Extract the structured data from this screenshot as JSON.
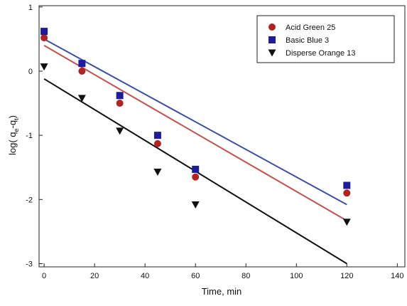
{
  "chart_data": {
    "type": "scatter",
    "x_label": "Time, min",
    "y_label": [
      "log( q",
      "e",
      "-q",
      "t",
      ")"
    ],
    "x": [
      0,
      15,
      30,
      45,
      60,
      120
    ],
    "series": [
      {
        "name": "Acid Green 25",
        "color": "#b22424",
        "line_color": "#c8504a",
        "marker": "circle",
        "values": [
          0.52,
          0.0,
          -0.5,
          -1.13,
          -1.65,
          -1.9
        ],
        "fit": {
          "x": [
            0,
            120
          ],
          "values": [
            0.4,
            -2.33
          ]
        }
      },
      {
        "name": "Basic Blue 3",
        "color": "#1c1c9c",
        "line_color": "#3a4fa8",
        "marker": "square",
        "values": [
          0.62,
          0.12,
          -0.38,
          -1.0,
          -1.53,
          -1.78
        ],
        "fit": {
          "x": [
            0,
            120
          ],
          "values": [
            0.5,
            -2.08
          ]
        }
      },
      {
        "name": "Disperse Orange 13",
        "color": "#111111",
        "line_color": "#111111",
        "marker": "triangle-down",
        "values": [
          0.07,
          -0.42,
          -0.93,
          -1.57,
          -2.08,
          -2.35
        ],
        "fit": {
          "x": [
            0,
            120
          ],
          "values": [
            -0.12,
            -3.0
          ]
        }
      }
    ],
    "xlim": [
      -2,
      143
    ],
    "xticks": [
      0,
      20,
      40,
      60,
      80,
      100,
      120,
      140
    ],
    "ylim": [
      -3.05,
      1.02
    ],
    "yticks": [
      -3,
      -2,
      -1,
      0,
      1
    ],
    "legend": "upper-right"
  }
}
